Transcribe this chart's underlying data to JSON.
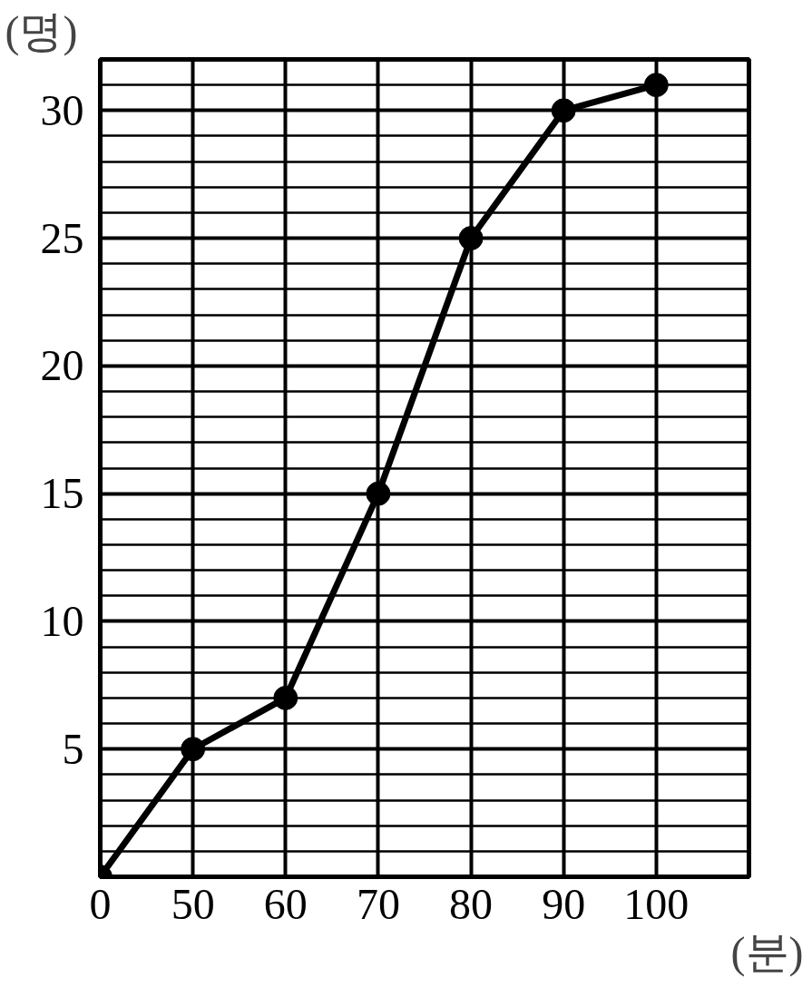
{
  "chart_data": {
    "type": "line",
    "ylabel": "(명)",
    "xlabel": "(분)",
    "categories": [
      "0",
      "50",
      "60",
      "70",
      "80",
      "90",
      "100",
      null
    ],
    "series": [
      {
        "color": "#000000",
        "values": [
          0,
          5,
          7,
          15,
          25,
          30,
          31,
          null
        ]
      }
    ],
    "ylim": [
      0,
      32
    ],
    "yticks": [
      {
        "value": 1,
        "label": null
      },
      {
        "value": 2,
        "label": null
      },
      {
        "value": 3,
        "label": null
      },
      {
        "value": 4,
        "label": null
      },
      5,
      {
        "value": 6,
        "label": null
      },
      {
        "value": 7,
        "label": null
      },
      {
        "value": 8,
        "label": null
      },
      {
        "value": 9,
        "label": null
      },
      10,
      {
        "value": 11,
        "label": null
      },
      {
        "value": 12,
        "label": null
      },
      {
        "value": 13,
        "label": null
      },
      {
        "value": 14,
        "label": null
      },
      15,
      {
        "value": 16,
        "label": null
      },
      {
        "value": 17,
        "label": null
      },
      {
        "value": 18,
        "label": null
      },
      {
        "value": 19,
        "label": null
      },
      20,
      {
        "value": 21,
        "label": null
      },
      {
        "value": 22,
        "label": null
      },
      {
        "value": 23,
        "label": null
      },
      {
        "value": 24,
        "label": null
      },
      25,
      {
        "value": 26,
        "label": null
      },
      {
        "value": 27,
        "label": null
      },
      {
        "value": 28,
        "label": null
      },
      {
        "value": 29,
        "label": null
      },
      30,
      {
        "value": 31,
        "label": null
      }
    ],
    "grid": true,
    "marker": "circle",
    "line_style": "solid"
  }
}
